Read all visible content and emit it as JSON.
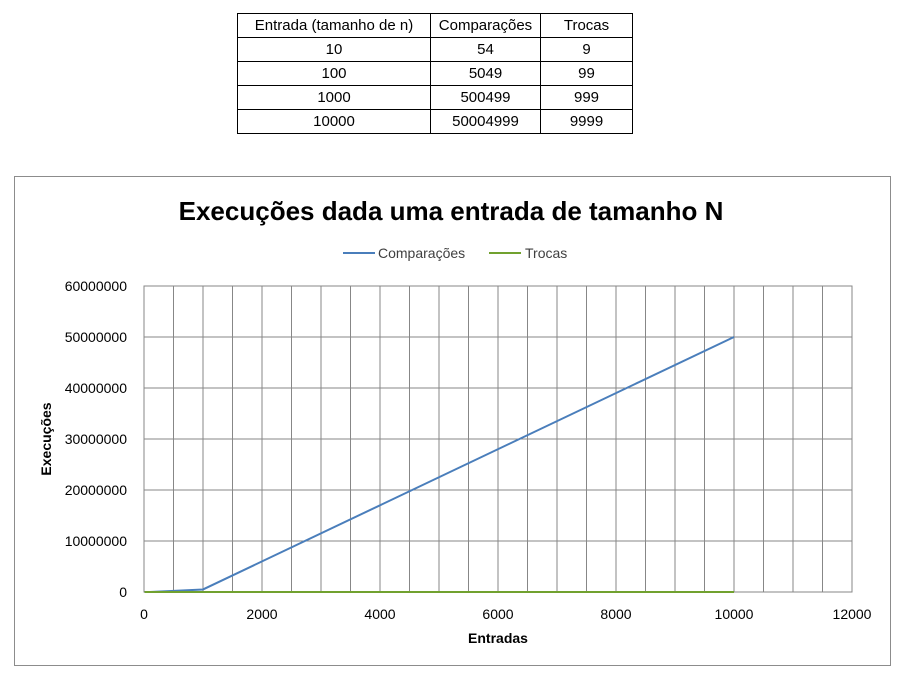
{
  "table": {
    "headers": [
      "Entrada (tamanho de n)",
      "Comparações",
      "Trocas"
    ],
    "rows": [
      [
        "10",
        "54",
        "9"
      ],
      [
        "100",
        "5049",
        "99"
      ],
      [
        "1000",
        "500499",
        "999"
      ],
      [
        "10000",
        "50004999",
        "9999"
      ]
    ]
  },
  "chart_data": {
    "type": "line",
    "title": "Execuções dada uma entrada de tamanho N",
    "xlabel": "Entradas",
    "ylabel": "Execuções",
    "xlim": [
      0,
      12000
    ],
    "ylim": [
      0,
      60000000
    ],
    "x_ticks": [
      "0",
      "2000",
      "4000",
      "6000",
      "8000",
      "10000",
      "12000"
    ],
    "y_ticks": [
      "0",
      "10000000",
      "20000000",
      "30000000",
      "40000000",
      "50000000",
      "60000000"
    ],
    "x_grid_step": 500,
    "y_grid_step": 10000000,
    "grid": true,
    "legend_position": "top",
    "x": [
      10,
      100,
      1000,
      10000
    ],
    "series": [
      {
        "name": "Comparações",
        "color": "#4a7ebb",
        "values": [
          54,
          5049,
          500499,
          50004999
        ]
      },
      {
        "name": "Trocas",
        "color": "#71a12f",
        "values": [
          9,
          99,
          999,
          9999
        ]
      }
    ]
  }
}
